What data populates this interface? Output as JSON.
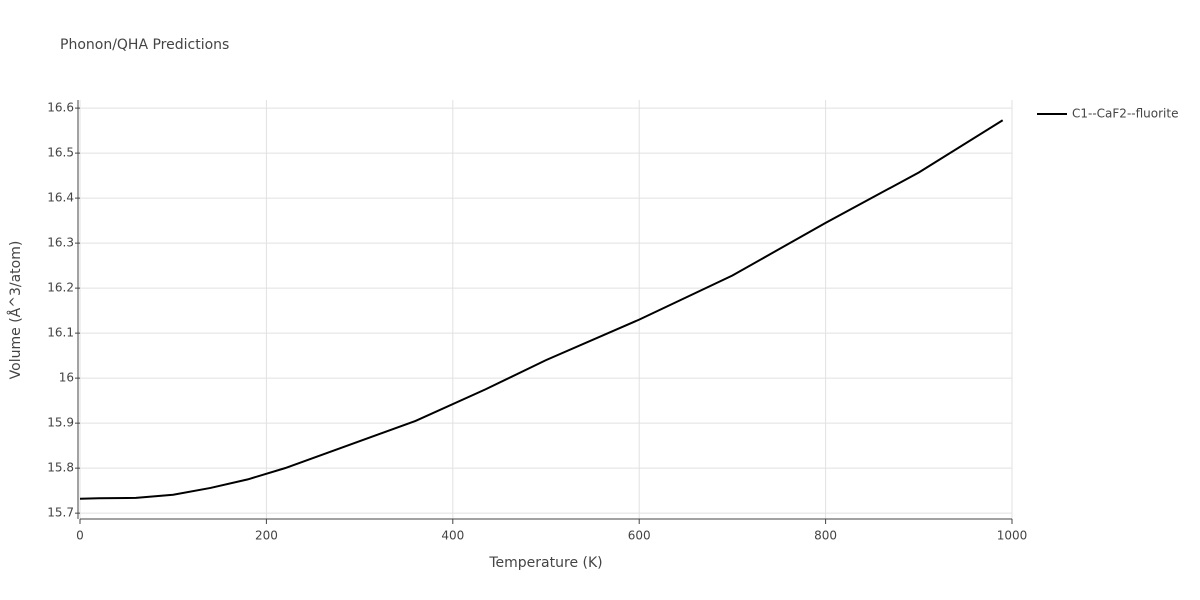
{
  "chart_data": {
    "type": "line",
    "title": "Phonon/QHA Predictions",
    "x_label": "Temperature (K)",
    "y_label": "Volume (Å^3/atom)",
    "x": [
      0,
      20,
      60,
      100,
      140,
      180,
      220,
      280,
      360,
      435,
      500,
      600,
      700,
      800,
      900,
      990
    ],
    "series": [
      {
        "name": "C1--CaF2--fluorite",
        "color": "#000000",
        "values": [
          15.732,
          15.733,
          15.734,
          15.741,
          15.756,
          15.775,
          15.8,
          15.845,
          15.905,
          15.975,
          16.04,
          16.13,
          16.228,
          16.345,
          16.457,
          16.573
        ]
      }
    ],
    "xlim": [
      0,
      1000
    ],
    "xticks": [
      0,
      200,
      400,
      600,
      800,
      1000
    ],
    "ylim": [
      15.687,
      16.618
    ],
    "yticks": [
      15.7,
      15.8,
      15.9,
      16,
      16.1,
      16.2,
      16.3,
      16.4,
      16.5,
      16.6
    ],
    "grid": true,
    "legend": "right"
  }
}
